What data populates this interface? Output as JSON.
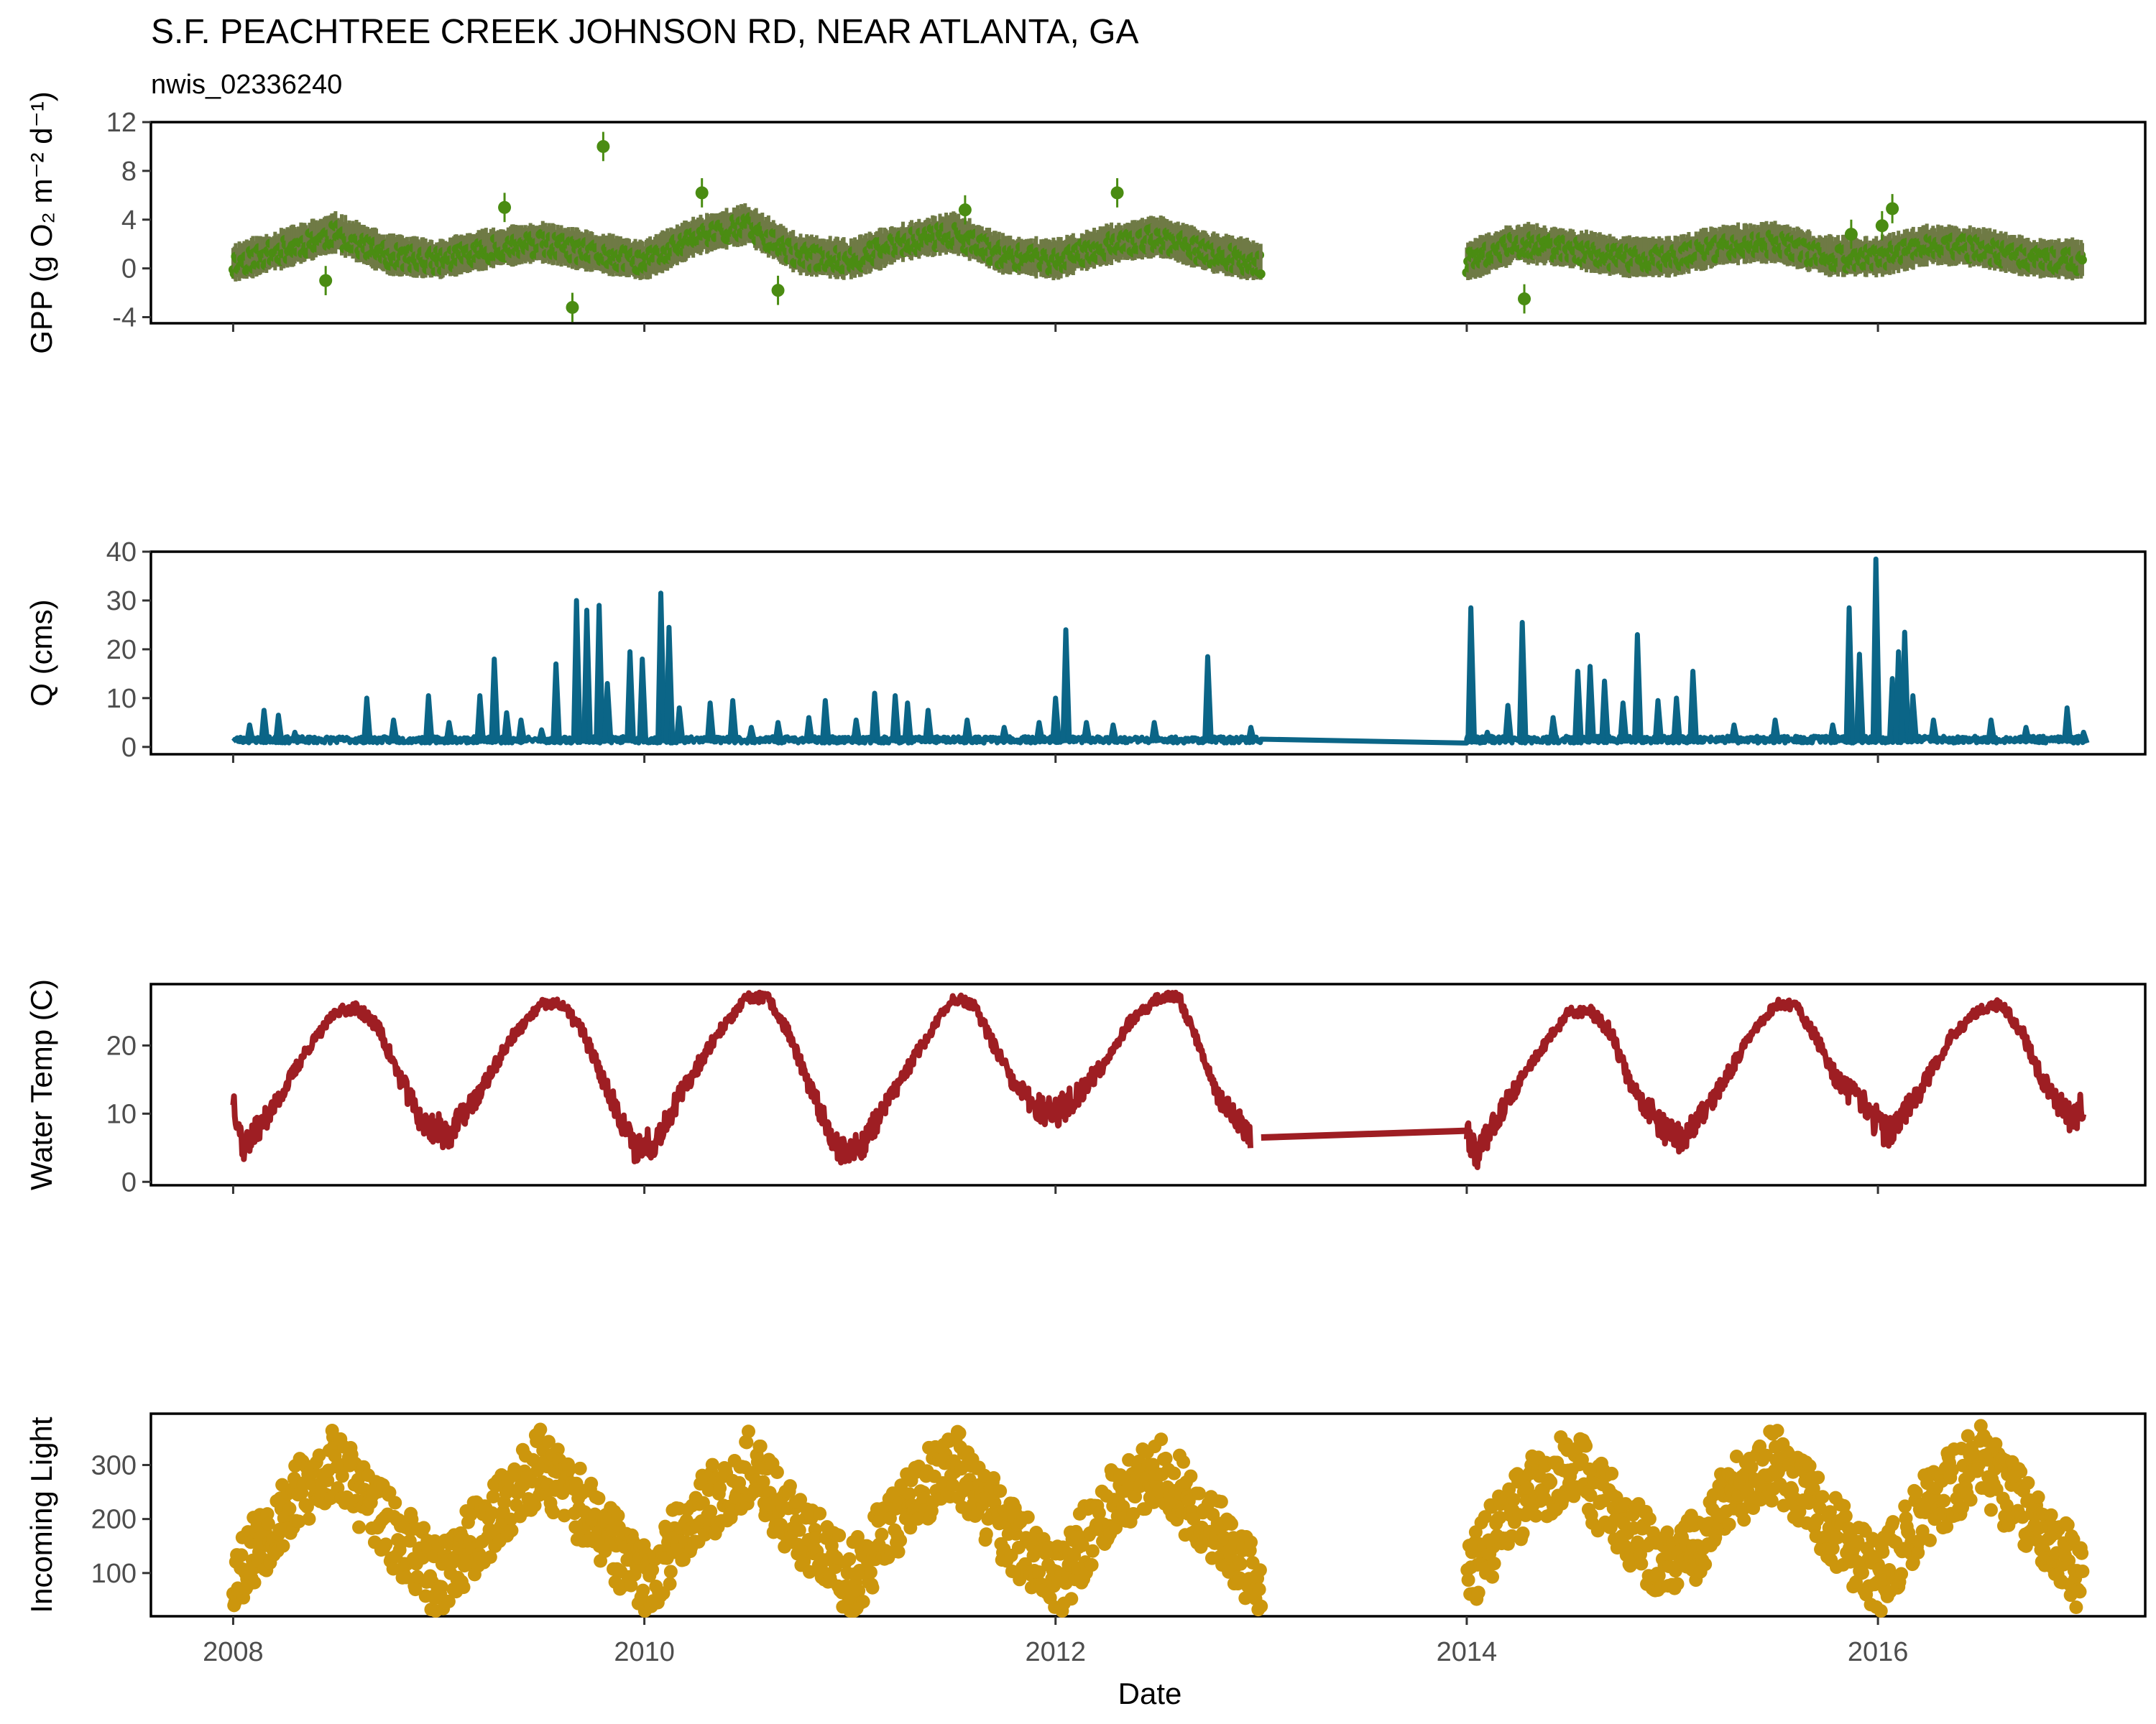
{
  "header": {
    "title": "S.F. PEACHTREE CREEK JOHNSON RD, NEAR ATLANTA, GA",
    "subtitle": "nwis_02336240"
  },
  "x_axis": {
    "title": "Date",
    "ticks": [
      {
        "label": "2008",
        "value": 2008
      },
      {
        "label": "2010",
        "value": 2010
      },
      {
        "label": "2012",
        "value": 2012
      },
      {
        "label": "2014",
        "value": 2014
      },
      {
        "label": "2016",
        "value": 2016
      }
    ],
    "range": [
      2007.6,
      2017.3
    ]
  },
  "chart_data": [
    {
      "id": "gpp",
      "type": "scatter",
      "ylabel": "GPP (g  O₂ m⁻² d⁻¹)",
      "ylim": [
        -4.5,
        12
      ],
      "yticks": [
        -4,
        0,
        4,
        8,
        12
      ],
      "color": "#4a8c12",
      "band_color": "#6f7a45",
      "grid": false,
      "gap": [
        2013.0,
        2014.0
      ],
      "series": [
        {
          "x": [
            2008.0,
            2008.25,
            2008.5,
            2008.75,
            2009.0,
            2009.25,
            2009.5,
            2009.75,
            2010.0,
            2010.25,
            2010.5,
            2010.75,
            2011.0,
            2011.25,
            2011.5,
            2011.75,
            2012.0,
            2012.25,
            2012.5,
            2012.75,
            2013.0,
            2014.0,
            2014.25,
            2014.5,
            2014.75,
            2015.0,
            2015.25,
            2015.5,
            2015.75,
            2016.0,
            2016.25,
            2016.5,
            2016.75,
            2017.0
          ],
          "y": [
            0.3,
            1.5,
            2.8,
            1.0,
            0.6,
            1.5,
            2.0,
            1.2,
            0.5,
            2.5,
            3.5,
            1.0,
            0.6,
            2.0,
            2.8,
            1.0,
            0.6,
            1.8,
            2.5,
            1.2,
            0.4,
            0.4,
            2.0,
            1.5,
            0.8,
            0.8,
            1.8,
            2.0,
            0.9,
            0.8,
            1.8,
            1.6,
            0.7,
            0.6
          ]
        }
      ],
      "outliers": [
        {
          "x": 2009.8,
          "y": 10.0
        },
        {
          "x": 2009.65,
          "y": -3.2
        },
        {
          "x": 2009.32,
          "y": 5.0
        },
        {
          "x": 2010.28,
          "y": 6.2
        },
        {
          "x": 2010.65,
          "y": -1.8
        },
        {
          "x": 2011.56,
          "y": 4.8
        },
        {
          "x": 2012.3,
          "y": 6.2
        },
        {
          "x": 2014.28,
          "y": -2.5
        },
        {
          "x": 2015.87,
          "y": 2.8
        },
        {
          "x": 2016.07,
          "y": 4.9
        },
        {
          "x": 2016.02,
          "y": 3.5
        },
        {
          "x": 2008.45,
          "y": -1.0
        }
      ]
    },
    {
      "id": "q",
      "type": "line",
      "ylabel": "Q (cms)",
      "ylim": [
        -1.5,
        40
      ],
      "yticks": [
        0,
        10,
        20,
        30,
        40
      ],
      "color": "#0b6587",
      "grid": false,
      "gap": [
        2013.0,
        2014.0
      ],
      "base": 0.8,
      "spikes": [
        {
          "x": 2008.08,
          "y": 4.5
        },
        {
          "x": 2008.15,
          "y": 7.5
        },
        {
          "x": 2008.22,
          "y": 6.5
        },
        {
          "x": 2008.3,
          "y": 3.0
        },
        {
          "x": 2008.65,
          "y": 10.0
        },
        {
          "x": 2008.78,
          "y": 5.5
        },
        {
          "x": 2008.95,
          "y": 10.5
        },
        {
          "x": 2009.05,
          "y": 5.0
        },
        {
          "x": 2009.2,
          "y": 10.5
        },
        {
          "x": 2009.27,
          "y": 18.0
        },
        {
          "x": 2009.33,
          "y": 7.0
        },
        {
          "x": 2009.4,
          "y": 5.5
        },
        {
          "x": 2009.5,
          "y": 3.5
        },
        {
          "x": 2009.57,
          "y": 17.0
        },
        {
          "x": 2009.67,
          "y": 30.0
        },
        {
          "x": 2009.72,
          "y": 28.0
        },
        {
          "x": 2009.78,
          "y": 29.0
        },
        {
          "x": 2009.82,
          "y": 13.0
        },
        {
          "x": 2009.93,
          "y": 19.5
        },
        {
          "x": 2009.99,
          "y": 18.0
        },
        {
          "x": 2010.08,
          "y": 31.5
        },
        {
          "x": 2010.12,
          "y": 24.5
        },
        {
          "x": 2010.17,
          "y": 8.0
        },
        {
          "x": 2010.32,
          "y": 9.0
        },
        {
          "x": 2010.43,
          "y": 9.5
        },
        {
          "x": 2010.52,
          "y": 4.0
        },
        {
          "x": 2010.65,
          "y": 5.0
        },
        {
          "x": 2010.8,
          "y": 6.0
        },
        {
          "x": 2010.88,
          "y": 9.5
        },
        {
          "x": 2011.03,
          "y": 5.5
        },
        {
          "x": 2011.12,
          "y": 11.0
        },
        {
          "x": 2011.22,
          "y": 10.5
        },
        {
          "x": 2011.28,
          "y": 9.0
        },
        {
          "x": 2011.38,
          "y": 7.5
        },
        {
          "x": 2011.57,
          "y": 5.5
        },
        {
          "x": 2011.75,
          "y": 4.0
        },
        {
          "x": 2011.92,
          "y": 5.0
        },
        {
          "x": 2012.0,
          "y": 10.0
        },
        {
          "x": 2012.05,
          "y": 24.0
        },
        {
          "x": 2012.15,
          "y": 5.0
        },
        {
          "x": 2012.28,
          "y": 4.5
        },
        {
          "x": 2012.48,
          "y": 5.0
        },
        {
          "x": 2012.74,
          "y": 18.5
        },
        {
          "x": 2012.95,
          "y": 4.0
        },
        {
          "x": 2014.02,
          "y": 28.5
        },
        {
          "x": 2014.1,
          "y": 3.0
        },
        {
          "x": 2014.2,
          "y": 8.5
        },
        {
          "x": 2014.27,
          "y": 25.5
        },
        {
          "x": 2014.42,
          "y": 6.0
        },
        {
          "x": 2014.54,
          "y": 15.5
        },
        {
          "x": 2014.6,
          "y": 16.5
        },
        {
          "x": 2014.67,
          "y": 13.5
        },
        {
          "x": 2014.76,
          "y": 9.0
        },
        {
          "x": 2014.83,
          "y": 23.0
        },
        {
          "x": 2014.93,
          "y": 9.5
        },
        {
          "x": 2015.02,
          "y": 10.0
        },
        {
          "x": 2015.1,
          "y": 15.5
        },
        {
          "x": 2015.3,
          "y": 4.5
        },
        {
          "x": 2015.5,
          "y": 5.5
        },
        {
          "x": 2015.78,
          "y": 4.5
        },
        {
          "x": 2015.86,
          "y": 28.5
        },
        {
          "x": 2015.91,
          "y": 19.0
        },
        {
          "x": 2015.99,
          "y": 38.5
        },
        {
          "x": 2016.07,
          "y": 14.0
        },
        {
          "x": 2016.1,
          "y": 19.5
        },
        {
          "x": 2016.13,
          "y": 23.5
        },
        {
          "x": 2016.17,
          "y": 10.5
        },
        {
          "x": 2016.27,
          "y": 5.5
        },
        {
          "x": 2016.55,
          "y": 5.5
        },
        {
          "x": 2016.72,
          "y": 4.0
        },
        {
          "x": 2016.92,
          "y": 8.0
        },
        {
          "x": 2017.0,
          "y": 3.0
        }
      ]
    },
    {
      "id": "water_temp",
      "type": "line",
      "ylabel": "Water Temp (C)",
      "ylim": [
        -0.5,
        29
      ],
      "yticks": [
        0,
        10,
        20
      ],
      "color": "#9e1e23",
      "grid": false,
      "gap_line": {
        "x": [
          2013.0,
          2014.0
        ],
        "y": [
          6.5,
          7.5
        ]
      },
      "series": [
        {
          "x": [
            2008.0,
            2008.05,
            2008.2,
            2008.35,
            2008.5,
            2008.6,
            2008.7,
            2008.8,
            2008.92,
            2009.05,
            2009.2,
            2009.35,
            2009.5,
            2009.6,
            2009.7,
            2009.8,
            2009.95,
            2010.05,
            2010.2,
            2010.35,
            2010.5,
            2010.6,
            2010.7,
            2010.8,
            2010.95,
            2011.05,
            2011.2,
            2011.35,
            2011.5,
            2011.6,
            2011.7,
            2011.8,
            2011.95,
            2012.05,
            2012.2,
            2012.35,
            2012.5,
            2012.6,
            2012.7,
            2012.8,
            2012.95
          ],
          "y": [
            12.5,
            5.0,
            11.0,
            19.0,
            25.0,
            25.5,
            23.0,
            16.0,
            8.5,
            7.0,
            13.0,
            21.0,
            26.0,
            26.0,
            22.0,
            15.0,
            5.0,
            6.0,
            14.0,
            21.5,
            27.0,
            27.0,
            22.0,
            14.0,
            4.5,
            5.0,
            12.5,
            20.0,
            27.0,
            26.0,
            20.0,
            14.0,
            10.0,
            11.0,
            16.0,
            23.0,
            27.0,
            27.0,
            20.0,
            12.0,
            7.0
          ]
        },
        {
          "x": [
            2014.0,
            2014.05,
            2014.2,
            2014.35,
            2014.5,
            2014.6,
            2014.7,
            2014.8,
            2014.95,
            2015.05,
            2015.2,
            2015.35,
            2015.5,
            2015.6,
            2015.7,
            2015.8,
            2015.95,
            2016.05,
            2016.2,
            2016.35,
            2016.5,
            2016.6,
            2016.7,
            2016.8,
            2016.95,
            2017.0
          ],
          "y": [
            7.5,
            4.0,
            12.0,
            19.0,
            25.0,
            25.0,
            22.0,
            14.0,
            8.0,
            6.0,
            12.0,
            20.0,
            26.0,
            26.0,
            21.0,
            15.0,
            10.5,
            7.0,
            13.0,
            21.0,
            25.5,
            26.0,
            22.0,
            15.0,
            8.5,
            12.0
          ]
        }
      ]
    },
    {
      "id": "incoming_light",
      "type": "scatter",
      "ylabel": "Incoming Light",
      "ylim": [
        20,
        395
      ],
      "yticks": [
        100,
        200,
        300
      ],
      "color": "#cc960d",
      "grid": false,
      "gap": [
        2013.0,
        2014.0
      ],
      "series": [
        {
          "x": [
            2008.0,
            2008.25,
            2008.5,
            2008.75,
            2009.0,
            2009.25,
            2009.5,
            2009.75,
            2010.0,
            2010.25,
            2010.5,
            2010.75,
            2011.0,
            2011.25,
            2011.5,
            2011.75,
            2012.0,
            2012.25,
            2012.5,
            2012.75,
            2013.0,
            2014.0,
            2014.25,
            2014.5,
            2014.75,
            2015.0,
            2015.25,
            2015.5,
            2015.75,
            2016.0,
            2016.25,
            2016.5,
            2016.75,
            2017.0
          ],
          "y": [
            110,
            230,
            320,
            200,
            100,
            210,
            320,
            210,
            95,
            220,
            310,
            200,
            95,
            230,
            320,
            200,
            90,
            230,
            310,
            200,
            100,
            110,
            240,
            320,
            210,
            110,
            240,
            320,
            210,
            100,
            240,
            320,
            210,
            100
          ]
        }
      ]
    }
  ]
}
